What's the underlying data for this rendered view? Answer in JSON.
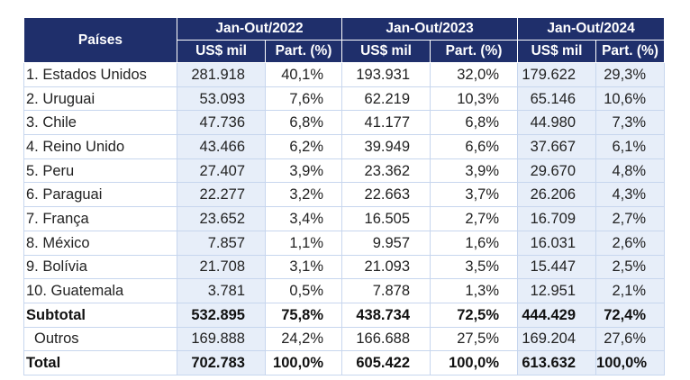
{
  "header": {
    "country_label": "Países",
    "periods": [
      "Jan-Out/2022",
      "Jan-Out/2023",
      "Jan-Out/2024"
    ],
    "value_label": "US$ mil",
    "share_label": "Part. (%)"
  },
  "rows": [
    {
      "country": "1. Estados Unidos",
      "v2022": "281.918",
      "p2022": "40,1%",
      "v2023": "193.931",
      "p2023": "32,0%",
      "v2024": "179.622",
      "p2024": "29,3%"
    },
    {
      "country": "2. Uruguai",
      "v2022": "53.093",
      "p2022": "7,6%",
      "v2023": "62.219",
      "p2023": "10,3%",
      "v2024": "65.146",
      "p2024": "10,6%"
    },
    {
      "country": "3. Chile",
      "v2022": "47.736",
      "p2022": "6,8%",
      "v2023": "41.177",
      "p2023": "6,8%",
      "v2024": "44.980",
      "p2024": "7,3%"
    },
    {
      "country": "4. Reino Unido",
      "v2022": "43.466",
      "p2022": "6,2%",
      "v2023": "39.949",
      "p2023": "6,6%",
      "v2024": "37.667",
      "p2024": "6,1%"
    },
    {
      "country": "5. Peru",
      "v2022": "27.407",
      "p2022": "3,9%",
      "v2023": "23.362",
      "p2023": "3,9%",
      "v2024": "29.670",
      "p2024": "4,8%"
    },
    {
      "country": "6. Paraguai",
      "v2022": "22.277",
      "p2022": "3,2%",
      "v2023": "22.663",
      "p2023": "3,7%",
      "v2024": "26.206",
      "p2024": "4,3%"
    },
    {
      "country": "7. França",
      "v2022": "23.652",
      "p2022": "3,4%",
      "v2023": "16.505",
      "p2023": "2,7%",
      "v2024": "16.709",
      "p2024": "2,7%"
    },
    {
      "country": "8. México",
      "v2022": "7.857",
      "p2022": "1,1%",
      "v2023": "9.957",
      "p2023": "1,6%",
      "v2024": "16.031",
      "p2024": "2,6%"
    },
    {
      "country": "9. Bolívia",
      "v2022": "21.708",
      "p2022": "3,1%",
      "v2023": "21.093",
      "p2023": "3,5%",
      "v2024": "15.447",
      "p2024": "2,5%"
    },
    {
      "country": "10. Guatemala",
      "v2022": "3.781",
      "p2022": "0,5%",
      "v2023": "7.878",
      "p2023": "1,3%",
      "v2024": "12.951",
      "p2024": "2,1%"
    },
    {
      "country": "Subtotal",
      "v2022": "532.895",
      "p2022": "75,8%",
      "v2023": "438.734",
      "p2023": "72,5%",
      "v2024": "444.429",
      "p2024": "72,4%",
      "bold": true
    },
    {
      "country": "Outros",
      "v2022": "169.888",
      "p2022": "24,2%",
      "v2023": "166.688",
      "p2023": "27,5%",
      "v2024": "169.204",
      "p2024": "27,6%",
      "indent": true
    },
    {
      "country": "Total",
      "v2022": "702.783",
      "p2022": "100,0%",
      "v2023": "605.422",
      "p2023": "100,0%",
      "v2024": "613.632",
      "p2024": "100,0%",
      "bold": true
    }
  ],
  "colors": {
    "header_bg": "#1f2f6b",
    "header_text": "#ffffff",
    "shaded_column": "#e7eef9",
    "grid_line": "#c7d6ee"
  }
}
